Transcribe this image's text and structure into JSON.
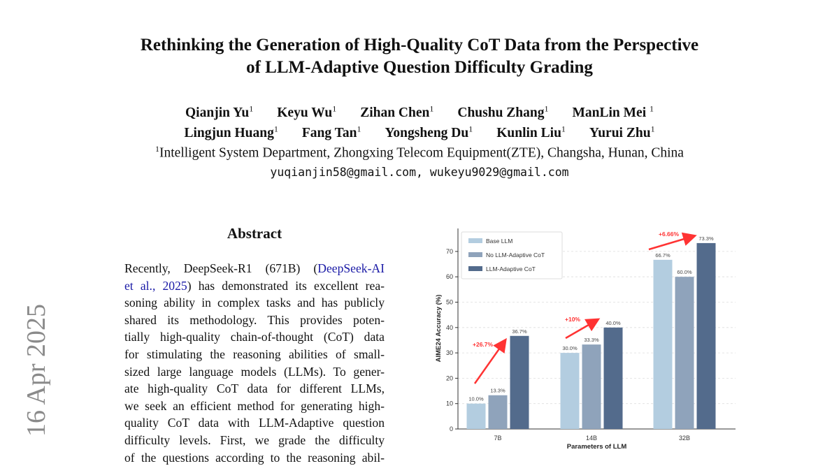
{
  "title_lines": [
    "Rethinking the Generation of High-Quality CoT Data from the Perspective",
    "of LLM-Adaptive Question Difficulty Grading"
  ],
  "authors_row1": [
    "Qianjin Yu",
    "Keyu Wu",
    "Zihan Chen",
    "Chushu Zhang",
    "ManLin Mei"
  ],
  "authors_row2": [
    "Lingjun Huang",
    "Fang Tan",
    "Yongsheng Du",
    "Kunlin Liu",
    "Yurui Zhu"
  ],
  "affiliation_mark": "1",
  "affiliation": "Intelligent System Department, Zhongxing Telecom Equipment(ZTE), Changsha, Hunan, China",
  "emails": "yuqianjin58@gmail.com, wukeyu9029@gmail.com",
  "side_stamp": "16 Apr 2025",
  "abstract": {
    "heading": "Abstract",
    "line1_pre": "Recently, DeepSeek-R1 (671B) (",
    "line1_link": "DeepSeek-AI",
    "line2_link": "et al., 2025",
    "line2_post": ") has demonstrated its excellent rea-",
    "lines": [
      "soning ability in complex tasks and has publicly",
      "shared its methodology.  This provides poten-",
      "tially high-quality chain-of-thought (CoT) data",
      "for stimulating the reasoning abilities of small-",
      "sized large language models (LLMs). To gener-",
      "ate high-quality CoT data for different LLMs,",
      "we seek an efficient method for generating high-",
      "quality CoT data with LLM-Adaptive question",
      "difficulty levels.  First, we grade the difficulty",
      "of the questions according to the reasoning abil-"
    ]
  },
  "chart_data": {
    "type": "bar",
    "categories": [
      "7B",
      "14B",
      "32B"
    ],
    "series": [
      {
        "name": "Base LLM",
        "values": [
          10.0,
          30.0,
          66.7
        ],
        "labels": [
          "10.0%",
          "30.0%",
          "66.7%"
        ],
        "color": "#b3cde0"
      },
      {
        "name": "No LLM-Adaptive CoT",
        "values": [
          13.3,
          33.3,
          60.0
        ],
        "labels": [
          "13.3%",
          "33.3%",
          "60.0%"
        ],
        "color": "#8fa3bb"
      },
      {
        "name": "LLM-Adaptive CoT",
        "values": [
          36.7,
          40.0,
          73.3
        ],
        "labels": [
          "36.7%",
          "40.0%",
          "73.3%"
        ],
        "color": "#536b8c"
      }
    ],
    "annotations": [
      "+26.7%",
      "+10%",
      "+6.66%"
    ],
    "annotation_color": "#ff3333",
    "xlabel": "Parameters of LLM",
    "ylabel": "AIME24 Accuracy (%)",
    "yticks": [
      "0",
      "10",
      "20",
      "30",
      "40",
      "50",
      "60",
      "70"
    ],
    "ylim": [
      0,
      78
    ],
    "grid": "horizontal dashed",
    "legend": "top-left"
  }
}
